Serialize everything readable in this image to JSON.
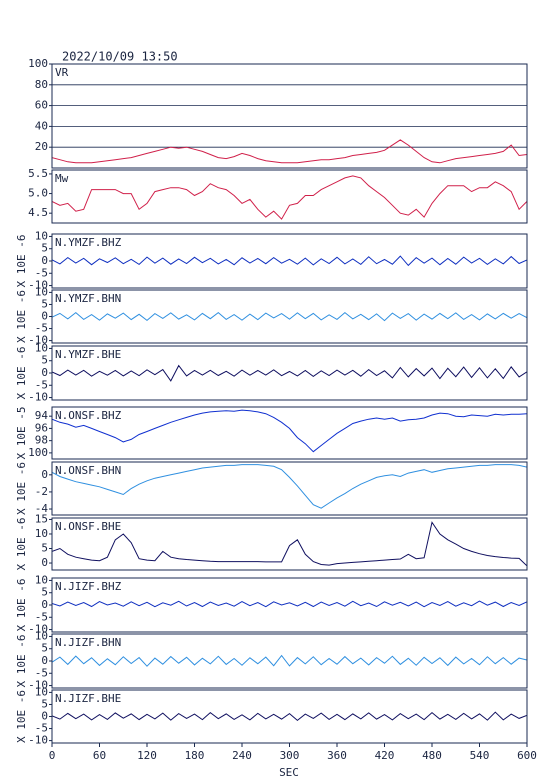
{
  "chart_data": {
    "type": "line",
    "title": "2022/10/09  13:50",
    "xlabel": "SEC",
    "xlim": [
      0,
      600
    ],
    "xticks": [
      0,
      60,
      120,
      180,
      240,
      300,
      360,
      420,
      480,
      540,
      600
    ],
    "x": [
      0,
      10,
      20,
      30,
      40,
      50,
      60,
      70,
      80,
      90,
      100,
      110,
      120,
      130,
      140,
      150,
      160,
      170,
      180,
      190,
      200,
      210,
      220,
      230,
      240,
      250,
      260,
      270,
      280,
      290,
      300,
      310,
      320,
      330,
      340,
      350,
      360,
      370,
      380,
      390,
      400,
      410,
      420,
      430,
      440,
      450,
      460,
      470,
      480,
      490,
      500,
      510,
      520,
      530,
      540,
      550,
      560,
      570,
      580,
      590,
      600
    ],
    "panels": [
      {
        "name": "VR",
        "color": "#d0204a",
        "ylim": [
          0,
          100
        ],
        "yticks": [
          20,
          40,
          60,
          80,
          100
        ],
        "grid": true,
        "values": [
          10,
          8,
          6,
          5,
          5,
          5,
          6,
          7,
          8,
          9,
          10,
          12,
          14,
          16,
          18,
          20,
          19,
          20,
          18,
          16,
          13,
          10,
          9,
          11,
          14,
          12,
          9,
          7,
          6,
          5,
          5,
          5,
          6,
          7,
          8,
          8,
          9,
          10,
          12,
          13,
          14,
          15,
          17,
          22,
          27,
          22,
          16,
          10,
          6,
          5,
          7,
          9,
          10,
          11,
          12,
          13,
          14,
          16,
          22,
          12,
          13
        ]
      },
      {
        "name": "Mw",
        "color": "#d0204a",
        "ylim": [
          4.25,
          5.6
        ],
        "yticks": [
          4.5,
          {
            "value": 5,
            "label": "5.0"
          },
          5.5
        ],
        "values": [
          4.8,
          4.7,
          4.75,
          4.55,
          4.6,
          5.1,
          5.1,
          5.1,
          5.1,
          5.0,
          5.0,
          4.6,
          4.75,
          5.05,
          5.1,
          5.15,
          5.15,
          5.1,
          4.95,
          5.05,
          5.25,
          5.15,
          5.1,
          4.95,
          4.75,
          4.85,
          4.6,
          4.4,
          4.55,
          4.35,
          4.7,
          4.75,
          4.95,
          4.95,
          5.1,
          5.2,
          5.3,
          5.4,
          5.45,
          5.4,
          5.2,
          5.05,
          4.9,
          4.7,
          4.5,
          4.45,
          4.6,
          4.4,
          4.75,
          5.0,
          5.2,
          5.2,
          5.2,
          5.05,
          5.15,
          5.15,
          5.3,
          5.2,
          5.05,
          4.6,
          4.8
        ]
      },
      {
        "name": "N.YMZF.BHZ",
        "ylabel": "X 10E -6",
        "color": "#1030c0",
        "ylim": [
          -11,
          11
        ],
        "yticks": [
          -10,
          -5,
          0,
          5,
          10
        ],
        "values": [
          0.5,
          -1.2,
          1.4,
          -0.8,
          1.1,
          -1.5,
          0.9,
          -0.6,
          1.3,
          -1.1,
          0.7,
          -1.4,
          1.6,
          -0.9,
          1.2,
          -1.3,
          0.8,
          -1.0,
          1.5,
          -0.7,
          1.1,
          -1.2,
          0.6,
          -1.5,
          1.3,
          -0.8,
          1.0,
          -1.1,
          1.4,
          -0.9,
          0.7,
          -1.3,
          1.2,
          -1.6,
          0.9,
          -1.0,
          1.5,
          -1.2,
          0.8,
          -1.4,
          1.7,
          -1.1,
          0.6,
          -1.3,
          2.0,
          -1.8,
          1.4,
          -0.9,
          1.2,
          -1.5,
          1.0,
          -1.3,
          1.6,
          -0.8,
          1.1,
          -1.4,
          0.9,
          -1.2,
          1.8,
          -1.0,
          0.4
        ]
      },
      {
        "name": "N.YMZF.BHN",
        "ylabel": "X 10E -6",
        "color": "#3090e0",
        "ylim": [
          -11,
          11
        ],
        "yticks": [
          -10,
          -5,
          0,
          5,
          10
        ],
        "values": [
          -0.3,
          1.3,
          -1.0,
          1.6,
          -1.2,
          0.8,
          -1.5,
          1.1,
          -0.7,
          1.4,
          -1.3,
          0.9,
          -1.6,
          1.2,
          -0.8,
          1.5,
          -1.1,
          0.7,
          -1.4,
          1.3,
          -0.9,
          1.6,
          -1.2,
          0.8,
          -1.5,
          1.0,
          -1.3,
          1.4,
          -0.6,
          1.2,
          -1.1,
          1.5,
          -0.9,
          1.3,
          -1.4,
          0.7,
          -1.2,
          1.6,
          -1.0,
          0.9,
          -1.3,
          1.1,
          -1.7,
          1.4,
          -0.8,
          1.2,
          -1.5,
          1.0,
          -1.1,
          1.3,
          -0.9,
          1.5,
          -1.2,
          0.8,
          -1.4,
          1.1,
          -1.0,
          1.3,
          -0.7,
          1.2,
          -0.5
        ]
      },
      {
        "name": "N.YMZF.BHE",
        "ylabel": "X 10E -6",
        "color": "#101060",
        "ylim": [
          -11,
          11
        ],
        "yticks": [
          -10,
          -5,
          0,
          5,
          10
        ],
        "values": [
          0.4,
          -1.0,
          1.2,
          -0.8,
          1.1,
          -1.3,
          0.7,
          -0.9,
          1.0,
          -1.2,
          0.8,
          -1.1,
          1.3,
          -0.7,
          1.4,
          -3.2,
          3.0,
          -1.2,
          1.0,
          -0.8,
          1.1,
          -1.0,
          0.7,
          -1.3,
          1.2,
          -0.9,
          1.0,
          -0.8,
          1.3,
          -1.1,
          0.6,
          -1.2,
          1.0,
          -1.4,
          0.9,
          -1.0,
          1.2,
          -0.8,
          1.1,
          -1.3,
          1.4,
          -1.0,
          0.9,
          -2.0,
          2.2,
          -1.6,
          1.8,
          -1.2,
          2.0,
          -2.3,
          1.9,
          -1.5,
          2.4,
          -1.8,
          2.1,
          -2.0,
          1.7,
          -2.2,
          2.5,
          -1.6,
          0.5
        ]
      },
      {
        "name": "N.ONSF.BHZ",
        "ylabel": "X 10E -5",
        "color": "#1030d0",
        "ylim": [
          101,
          92.5
        ],
        "yticks": [
          94,
          96,
          98,
          100
        ],
        "values": [
          94.5,
          95,
          95.3,
          95.8,
          95.5,
          96,
          96.5,
          97,
          97.5,
          98.2,
          97.8,
          97,
          96.5,
          96,
          95.5,
          95,
          94.6,
          94.2,
          93.8,
          93.5,
          93.3,
          93.2,
          93.1,
          93.2,
          93.0,
          93.1,
          93.3,
          93.6,
          94.2,
          95,
          96,
          97.5,
          98.5,
          99.8,
          98.8,
          97.8,
          96.8,
          96,
          95.2,
          94.8,
          94.5,
          94.3,
          94.5,
          94.3,
          94.8,
          94.6,
          94.5,
          94.3,
          93.8,
          93.5,
          93.6,
          94,
          94.1,
          93.8,
          93.9,
          94,
          93.7,
          93.8,
          93.7,
          93.7,
          93.6
        ]
      },
      {
        "name": "N.ONSF.BHN",
        "ylabel": "X 10E -6",
        "color": "#3090e0",
        "ylim": [
          -4.7,
          1.5
        ],
        "yticks": [
          -4,
          -2,
          0
        ],
        "values": [
          0.3,
          -0.2,
          -0.5,
          -0.8,
          -1.0,
          -1.2,
          -1.4,
          -1.7,
          -2.0,
          -2.3,
          -1.6,
          -1.1,
          -0.7,
          -0.4,
          -0.2,
          0.0,
          0.2,
          0.4,
          0.6,
          0.8,
          0.9,
          1.0,
          1.1,
          1.1,
          1.2,
          1.2,
          1.2,
          1.1,
          1.0,
          0.6,
          -0.3,
          -1.3,
          -2.4,
          -3.5,
          -3.9,
          -3.3,
          -2.7,
          -2.2,
          -1.6,
          -1.1,
          -0.7,
          -0.3,
          -0.1,
          0.0,
          -0.2,
          0.2,
          0.4,
          0.6,
          0.3,
          0.5,
          0.7,
          0.8,
          0.9,
          1.0,
          1.1,
          1.1,
          1.2,
          1.2,
          1.2,
          1.1,
          0.9
        ]
      },
      {
        "name": "N.ONSF.BHE",
        "ylabel": "X 10E -6",
        "color": "#101060",
        "ylim": [
          -2.4,
          15.5
        ],
        "yticks": [
          0,
          5,
          10,
          15
        ],
        "values": [
          4,
          5,
          3,
          2,
          1.5,
          1,
          0.8,
          2,
          8,
          10,
          7,
          1.5,
          1,
          0.8,
          4,
          2,
          1.5,
          1.2,
          1,
          0.8,
          0.6,
          0.5,
          0.5,
          0.5,
          0.5,
          0.5,
          0.5,
          0.4,
          0.4,
          0.4,
          6,
          8,
          3,
          0.5,
          -0.5,
          -0.7,
          -0.2,
          0.0,
          0.2,
          0.4,
          0.6,
          0.8,
          1,
          1.2,
          1.4,
          3,
          1.5,
          1.8,
          14,
          10,
          8,
          6.5,
          5,
          4,
          3.2,
          2.6,
          2.2,
          1.9,
          1.7,
          1.6,
          -1
        ]
      },
      {
        "name": "N.JIZF.BHZ",
        "ylabel": "X 10E -6",
        "color": "#1030c0",
        "ylim": [
          -11,
          11
        ],
        "yticks": [
          -10,
          -5,
          0,
          5,
          10
        ],
        "values": [
          0.6,
          -0.4,
          1.2,
          -0.2,
          1.0,
          -0.6,
          1.4,
          0.0,
          0.8,
          -0.5,
          1.3,
          -0.3,
          1.1,
          -0.7,
          0.9,
          -0.1,
          1.5,
          -0.4,
          1.0,
          -0.6,
          1.2,
          -0.2,
          0.8,
          -0.5,
          1.4,
          -0.3,
          1.0,
          -0.7,
          1.3,
          0.0,
          0.9,
          -0.4,
          1.1,
          -0.6,
          1.2,
          -0.2,
          1.0,
          -0.5,
          1.5,
          -0.3,
          0.8,
          -0.6,
          1.3,
          -0.1,
          1.1,
          -0.4,
          1.2,
          -0.7,
          1.0,
          -0.2,
          1.4,
          -0.5,
          0.9,
          -0.3,
          1.6,
          -0.1,
          1.2,
          -0.6,
          1.0,
          -0.2,
          1.3
        ]
      },
      {
        "name": "N.JIZF.BHN",
        "ylabel": "X 10E -6",
        "color": "#3090e0",
        "ylim": [
          -11,
          11
        ],
        "yticks": [
          -10,
          -5,
          0,
          5,
          10
        ],
        "values": [
          -0.5,
          1.6,
          -1.4,
          2.0,
          -1.1,
          1.3,
          -1.8,
          0.9,
          -1.5,
          1.7,
          -1.0,
          1.4,
          -2.1,
          1.2,
          -1.3,
          1.8,
          -0.9,
          1.5,
          -1.6,
          1.1,
          -1.2,
          1.9,
          -1.4,
          1.0,
          -1.7,
          1.3,
          -1.1,
          1.6,
          -1.9,
          2.2,
          -2.0,
          1.4,
          -1.2,
          1.7,
          -1.5,
          1.0,
          -1.3,
          1.8,
          -1.1,
          1.2,
          -1.6,
          1.4,
          -0.9,
          1.9,
          -1.4,
          1.1,
          -1.7,
          1.5,
          -1.0,
          1.3,
          -1.8,
          1.6,
          -1.2,
          1.0,
          -1.5,
          1.7,
          -1.1,
          1.4,
          -1.3,
          1.2,
          0.4
        ]
      },
      {
        "name": "N.JIZF.BHE",
        "ylabel": "X 10E -6",
        "color": "#101060",
        "ylim": [
          -11,
          11
        ],
        "yticks": [
          -10,
          -5,
          0,
          5,
          10
        ],
        "values": [
          0.3,
          -1.1,
          1.3,
          -0.9,
          1.0,
          -1.4,
          0.8,
          -1.2,
          1.5,
          -0.7,
          1.1,
          -1.3,
          0.9,
          -1.0,
          1.4,
          -1.5,
          1.2,
          -0.8,
          1.0,
          -1.3,
          1.6,
          -0.9,
          1.1,
          -1.2,
          0.7,
          -1.4,
          1.3,
          -1.0,
          0.9,
          -1.1,
          1.2,
          -1.6,
          1.0,
          -0.8,
          1.4,
          -1.2,
          0.9,
          -1.3,
          1.1,
          -1.0,
          1.5,
          -1.1,
          0.8,
          -1.4,
          1.2,
          -0.9,
          1.0,
          -1.3,
          1.6,
          -1.1,
          0.9,
          -1.2,
          1.3,
          -1.0,
          1.1,
          -1.5,
          1.8,
          -1.4,
          1.0,
          -0.8,
          0.5
        ]
      }
    ]
  }
}
